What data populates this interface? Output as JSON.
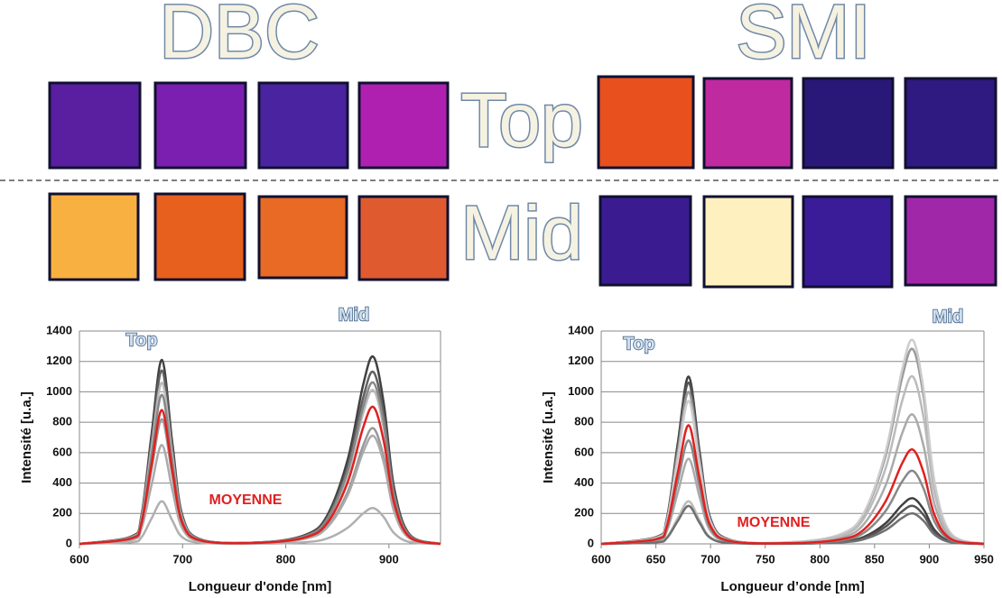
{
  "labels": {
    "dbc": "DBC",
    "smi": "SMI",
    "top": "Top",
    "mid": "Mid"
  },
  "chart_data": [
    {
      "type": "line",
      "x": [
        600,
        650,
        660,
        670,
        680,
        690,
        700,
        720,
        780,
        820,
        840,
        860,
        875,
        885,
        895,
        905,
        920,
        950
      ],
      "series": [
        {
          "color": "#404040",
          "values": [
            0,
            48,
            182,
            726,
            1210,
            666,
            182,
            24,
            12,
            62,
            185,
            554,
            1046,
            1230,
            923,
            369,
            62,
            0
          ]
        },
        {
          "color": "#606060",
          "values": [
            0,
            46,
            171,
            684,
            1140,
            627,
            171,
            23,
            11,
            57,
            170,
            509,
            961,
            1130,
            848,
            339,
            57,
            0
          ]
        },
        {
          "color": "#bbbbbb",
          "values": [
            0,
            42,
            159,
            636,
            1060,
            583,
            159,
            21,
            10,
            51,
            152,
            455,
            859,
            1010,
            758,
            303,
            51,
            0
          ]
        },
        {
          "color": "#888888",
          "values": [
            0,
            39,
            147,
            588,
            980,
            539,
            147,
            20,
            11,
            53,
            159,
            477,
            901,
            1060,
            795,
            318,
            53,
            0
          ]
        },
        {
          "color": "#999999",
          "values": [
            0,
            33,
            123,
            492,
            820,
            451,
            123,
            16,
            8,
            38,
            114,
            342,
            646,
            760,
            570,
            228,
            38,
            0
          ]
        },
        {
          "color": "#aaaaaa",
          "values": [
            0,
            26,
            98,
            390,
            650,
            358,
            98,
            13,
            7,
            36,
            107,
            320,
            604,
            710,
            533,
            213,
            36,
            0
          ]
        },
        {
          "color": "#b0b0b0",
          "values": [
            0,
            11,
            42,
            168,
            280,
            154,
            42,
            6,
            2,
            12,
            35,
            106,
            200,
            235,
            176,
            71,
            12,
            0
          ]
        },
        {
          "color": "#e02020",
          "values": [
            0,
            35,
            132,
            528,
            880,
            484,
            132,
            18,
            9,
            45,
            135,
            405,
            765,
            900,
            675,
            270,
            45,
            0
          ]
        }
      ],
      "xlim": [
        600,
        950
      ],
      "xticks": [
        600,
        700,
        800,
        900
      ],
      "ylim": [
        0,
        1400
      ],
      "yticks": [
        0,
        200,
        400,
        600,
        800,
        1000,
        1200,
        1400
      ],
      "grid": true,
      "xlabel": "Longueur d'onde [nm]",
      "ylabel": "Intensité [u.a.]",
      "annotations": [
        {
          "text": "Top"
        },
        {
          "text": "Mid"
        },
        {
          "text": "MOYENNE",
          "color": "#e02020"
        }
      ]
    },
    {
      "type": "line",
      "x": [
        600,
        650,
        660,
        670,
        680,
        690,
        700,
        720,
        780,
        820,
        840,
        860,
        875,
        885,
        895,
        905,
        920,
        950
      ],
      "series": [
        {
          "color": "#404040",
          "values": [
            0,
            44,
            165,
            660,
            1100,
            605,
            165,
            22,
            3,
            15,
            45,
            135,
            255,
            300,
            225,
            90,
            15,
            0
          ]
        },
        {
          "color": "#555555",
          "values": [
            0,
            42,
            159,
            636,
            1060,
            583,
            159,
            21,
            3,
            13,
            38,
            113,
            213,
            250,
            188,
            75,
            13,
            0
          ]
        },
        {
          "color": "#999999",
          "values": [
            0,
            40,
            150,
            600,
            1000,
            550,
            150,
            20,
            13,
            64,
            192,
            576,
            1088,
            1280,
            960,
            384,
            64,
            0
          ]
        },
        {
          "color": "#cccccc",
          "values": [
            0,
            38,
            141,
            564,
            940,
            517,
            141,
            19,
            13,
            67,
            201,
            603,
            1139,
            1340,
            1005,
            402,
            67,
            0
          ]
        },
        {
          "color": "#aaaaaa",
          "values": [
            0,
            22,
            84,
            336,
            560,
            308,
            84,
            11,
            9,
            43,
            128,
            383,
            723,
            850,
            638,
            255,
            43,
            0
          ]
        },
        {
          "color": "#bbbbbb",
          "values": [
            0,
            11,
            42,
            168,
            280,
            154,
            42,
            6,
            11,
            55,
            165,
            495,
            935,
            1100,
            825,
            330,
            55,
            0
          ]
        },
        {
          "color": "#707070",
          "values": [
            0,
            10,
            38,
            150,
            250,
            138,
            38,
            5,
            2,
            10,
            30,
            90,
            170,
            200,
            150,
            60,
            10,
            0
          ]
        },
        {
          "color": "#888888",
          "values": [
            0,
            27,
            102,
            408,
            680,
            374,
            102,
            14,
            5,
            24,
            72,
            216,
            408,
            480,
            360,
            144,
            24,
            0
          ]
        },
        {
          "color": "#e02020",
          "values": [
            0,
            31,
            117,
            468,
            780,
            429,
            117,
            16,
            6,
            31,
            93,
            279,
            527,
            620,
            465,
            186,
            31,
            0
          ]
        }
      ],
      "xlim": [
        600,
        950
      ],
      "xticks": [
        600,
        650,
        700,
        750,
        800,
        850,
        900,
        950
      ],
      "ylim": [
        0,
        1400
      ],
      "yticks": [
        0,
        200,
        400,
        600,
        800,
        1000,
        1200,
        1400
      ],
      "grid": true,
      "xlabel": "Longueur d’onde [nm]",
      "ylabel": "Intensité [u.a.]",
      "annotations": [
        {
          "text": "Top"
        },
        {
          "text": "Mid"
        },
        {
          "text": "MOYENNE",
          "color": "#e02020"
        }
      ]
    }
  ]
}
